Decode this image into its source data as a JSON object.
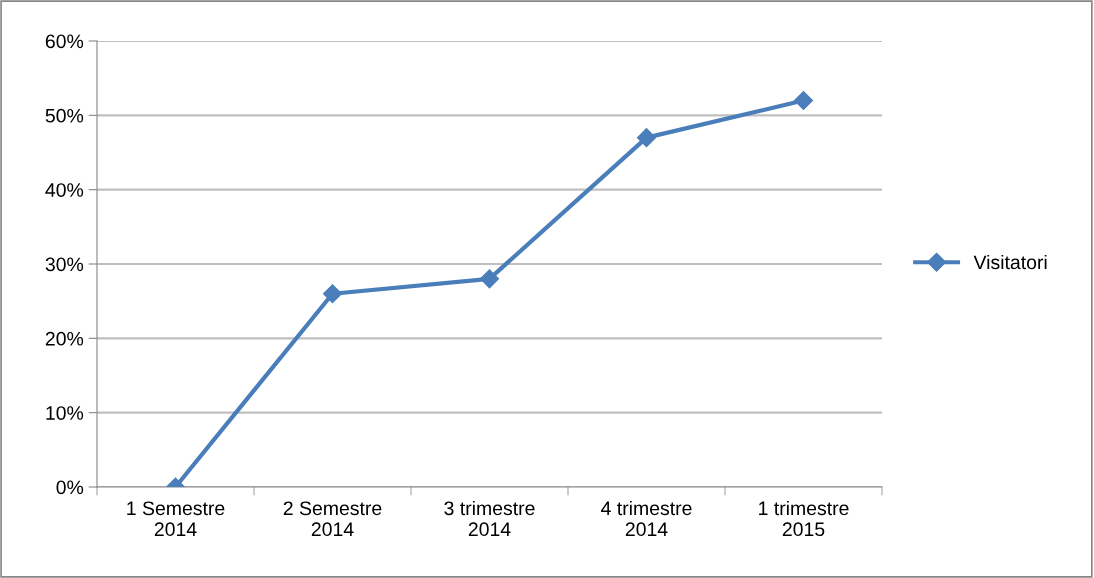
{
  "chart_data": {
    "type": "line",
    "categories": [
      "1 Semestre\n2014",
      "2 Semestre\n2014",
      "3 trimestre\n2014",
      "4 trimestre\n2014",
      "1 trimestre\n2015"
    ],
    "series": [
      {
        "name": "Visitatori",
        "color": "#4a7ebb",
        "values": [
          0,
          26,
          28,
          47,
          52
        ]
      }
    ],
    "ylim": [
      0,
      60
    ],
    "yticks": [
      {
        "value": 0,
        "label": "0%"
      },
      {
        "value": 10,
        "label": "10%"
      },
      {
        "value": 20,
        "label": "20%"
      },
      {
        "value": 30,
        "label": "30%"
      },
      {
        "value": 40,
        "label": "40%"
      },
      {
        "value": 50,
        "label": "50%"
      },
      {
        "value": 60,
        "label": "60%"
      }
    ],
    "grid": "y",
    "legend": "right",
    "marker": "diamond",
    "line_style": "solid"
  }
}
